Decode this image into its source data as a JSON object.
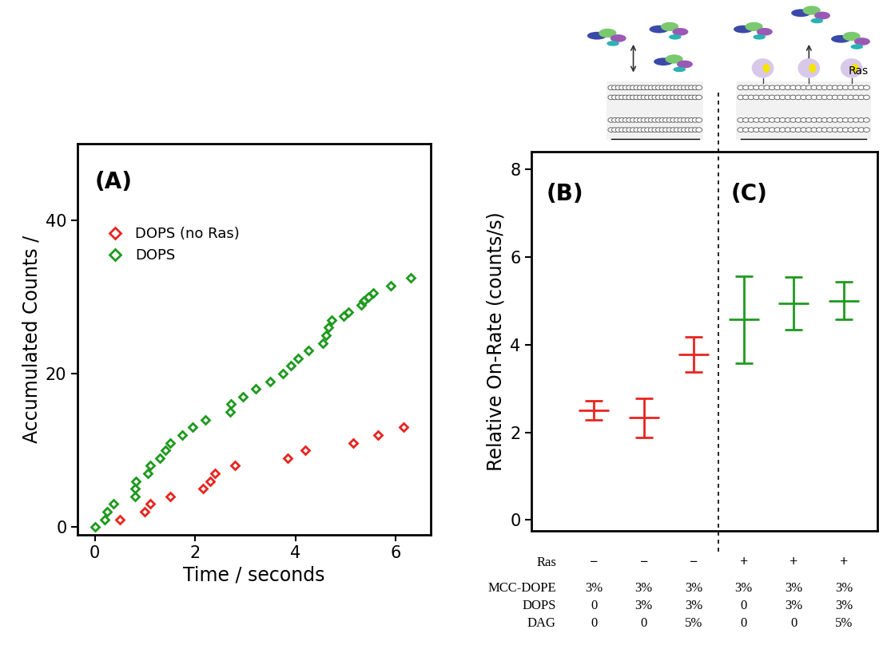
{
  "chart_data": [
    {
      "type": "scatter",
      "annotations": [
        "(A)"
      ],
      "x_label": "Time / seconds",
      "y_label": "Accumulated Counts /",
      "xlim": [
        -0.35,
        6.7
      ],
      "xticks": [
        0,
        2,
        4,
        6
      ],
      "ylim": [
        -1,
        50
      ],
      "yticks": [
        0,
        20,
        40
      ],
      "legend": "upper left",
      "series": [
        {
          "name": "DOPS (no Ras)",
          "color": "#e8251f",
          "marker": "diamond",
          "x": [
            0.5,
            1.0,
            1.1,
            1.5,
            2.15,
            2.3,
            2.4,
            2.8,
            3.85,
            4.2,
            5.15,
            5.65,
            6.15
          ],
          "values": [
            1,
            2,
            3,
            4,
            5,
            6,
            7,
            8,
            9,
            10,
            11,
            12,
            13
          ]
        },
        {
          "name": "DOPS",
          "color": "#1e9a1e",
          "marker": "diamond",
          "x": [
            0,
            0.2,
            0.25,
            0.38,
            0.8,
            0.8,
            0.82,
            1.05,
            1.1,
            1.3,
            1.4,
            1.5,
            1.75,
            1.95,
            2.2,
            2.7,
            2.72,
            2.95,
            3.2,
            3.5,
            3.75,
            3.9,
            4.05,
            4.25,
            4.55,
            4.6,
            4.65,
            4.72,
            4.95,
            5.05,
            5.3,
            5.35,
            5.45,
            5.55,
            5.9,
            6.3
          ],
          "values": [
            0,
            1,
            2,
            3,
            4,
            5,
            6,
            7,
            8,
            9,
            10,
            11,
            12,
            13,
            14,
            15,
            16,
            17,
            18,
            19,
            20,
            21,
            22,
            23,
            24,
            25,
            26,
            27,
            27.5,
            28,
            29,
            29.5,
            30,
            30.5,
            31.5,
            32.5
          ]
        }
      ]
    },
    {
      "type": "errorbar",
      "annotations": [
        "(B)",
        "(C)"
      ],
      "schematic_label": "Ras",
      "y_label": "Relative On-Rate (counts/s)",
      "ylim": [
        -0.25,
        8.4
      ],
      "yticks": [
        0,
        2,
        4,
        6,
        8
      ],
      "tick_labels": "y",
      "categories": [
        null,
        null,
        null,
        null,
        null,
        null
      ],
      "values": [
        2.5,
        2.33,
        3.78,
        4.57,
        4.95,
        5.0
      ],
      "errors": [
        0.22,
        0.45,
        0.4,
        1.0,
        0.6,
        0.43
      ],
      "colors": [
        "#e8251f",
        "#e8251f",
        "#e8251f",
        "#1e9a1e",
        "#1e9a1e",
        "#1e9a1e"
      ],
      "conditions": [
        {
          "label": "Ras",
          "values": [
            "−",
            "−",
            "−",
            "+",
            "+",
            "+"
          ]
        },
        {
          "label": "MCC-DOPE",
          "values": [
            "3%",
            "3%",
            "3%",
            "3%",
            "3%",
            "3%"
          ]
        },
        {
          "label": "DOPS",
          "values": [
            "0",
            "3%",
            "3%",
            "0",
            "3%",
            "3%"
          ]
        },
        {
          "label": "DAG",
          "values": [
            "0",
            "0",
            "5%",
            "0",
            "0",
            "5%"
          ]
        }
      ]
    }
  ]
}
